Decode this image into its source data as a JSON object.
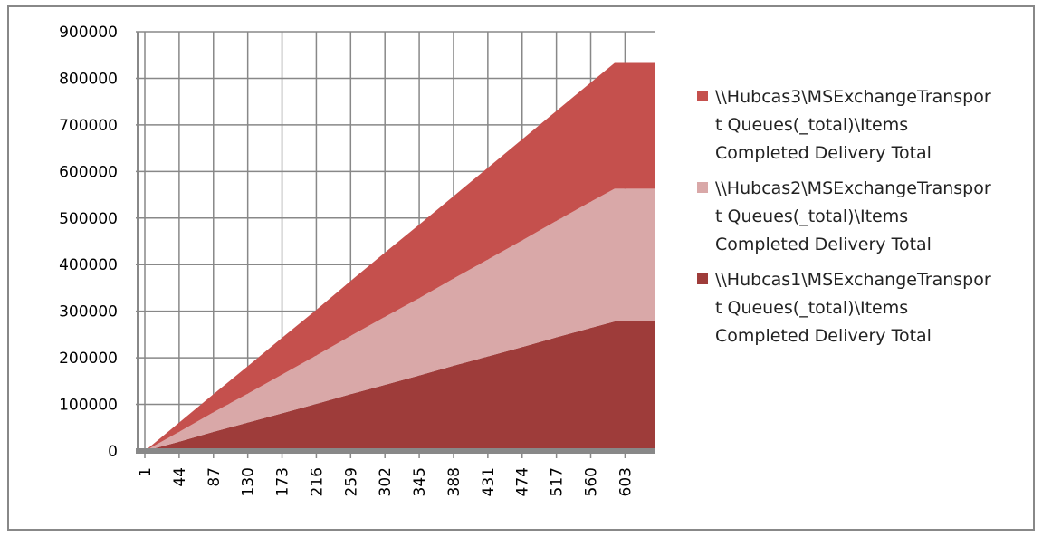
{
  "chart_data": {
    "type": "area",
    "stacked": true,
    "x": [
      1,
      44,
      87,
      130,
      173,
      216,
      259,
      302,
      345,
      388,
      431,
      474,
      517,
      560,
      590,
      603,
      640
    ],
    "xlim": [
      1,
      640
    ],
    "xticks": [
      1,
      44,
      87,
      130,
      173,
      216,
      259,
      302,
      345,
      388,
      431,
      474,
      517,
      560,
      603
    ],
    "ylim": [
      0,
      900000
    ],
    "yticks": [
      0,
      100000,
      200000,
      300000,
      400000,
      500000,
      600000,
      700000,
      800000,
      900000
    ],
    "grid": true,
    "series": [
      {
        "name": "\\\\Hubcas1\\MSExchangeTransport Queues(_total)\\Items Completed Delivery Total",
        "color": "#9e3c3a",
        "values": [
          0,
          20000,
          41000,
          61000,
          81000,
          101000,
          122000,
          142000,
          162000,
          183000,
          203000,
          223000,
          244000,
          264000,
          278000,
          278000,
          278000
        ]
      },
      {
        "name": "\\\\Hubcas2\\MSExchangeTransport Queues(_total)\\Items Completed Delivery Total",
        "color": "#d9a8a8",
        "values": [
          0,
          21000,
          42000,
          62000,
          83000,
          104000,
          125000,
          146000,
          166000,
          187000,
          208000,
          229000,
          250000,
          271000,
          285000,
          285000,
          285000
        ]
      },
      {
        "name": "\\\\Hubcas3\\MSExchangeTransport Queues(_total)\\Items Completed Delivery Total",
        "color": "#c5504d",
        "values": [
          0,
          20000,
          39000,
          59000,
          79000,
          98000,
          118000,
          138000,
          158000,
          177000,
          197000,
          217000,
          236000,
          256000,
          270000,
          270000,
          270000
        ]
      }
    ]
  }
}
